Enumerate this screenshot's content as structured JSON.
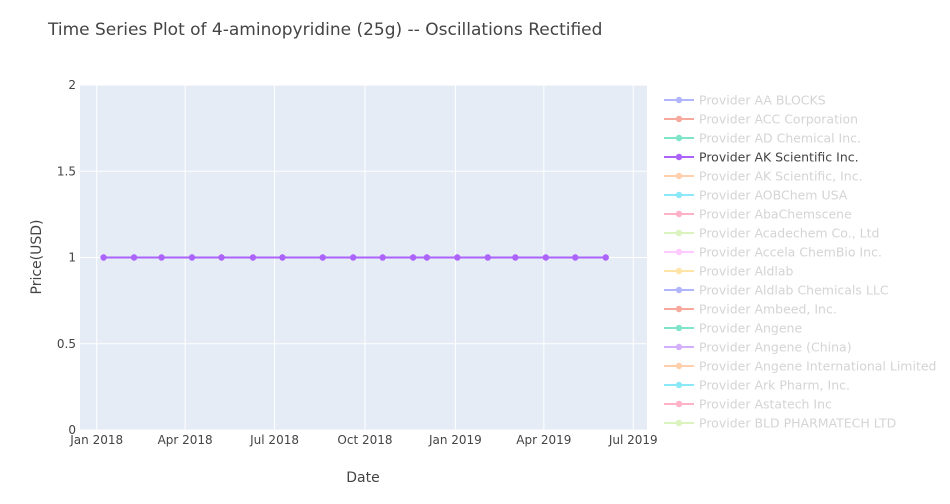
{
  "chart_data": {
    "type": "line",
    "title": "Time Series Plot of 4-aminopyridine (25g) -- Oscillations Rectified",
    "xlabel": "Date",
    "ylabel": "Price(USD)",
    "xlim": [
      "2017-12-15",
      "2019-07-15"
    ],
    "ylim": [
      0,
      2
    ],
    "x_ticks": [
      {
        "label": "Jan 2018",
        "date": "2018-01-01"
      },
      {
        "label": "Apr 2018",
        "date": "2018-04-01"
      },
      {
        "label": "Jul 2018",
        "date": "2018-07-01"
      },
      {
        "label": "Oct 2018",
        "date": "2018-10-01"
      },
      {
        "label": "Jan 2019",
        "date": "2019-01-01"
      },
      {
        "label": "Apr 2019",
        "date": "2019-04-01"
      },
      {
        "label": "Jul 2019",
        "date": "2019-07-01"
      }
    ],
    "y_ticks": [
      {
        "label": "0",
        "value": 0
      },
      {
        "label": "0.5",
        "value": 0.5
      },
      {
        "label": "1",
        "value": 1
      },
      {
        "label": "1.5",
        "value": 1.5
      },
      {
        "label": "2",
        "value": 2
      }
    ],
    "grid": true,
    "legend_position": "right",
    "series": [
      {
        "name": "Provider AA BLOCKS",
        "color": "#636efa",
        "x": [],
        "y": []
      },
      {
        "name": "Provider ACC Corporation",
        "color": "#ef553b",
        "x": [],
        "y": []
      },
      {
        "name": "Provider AD Chemical Inc.",
        "color": "#00cc96",
        "x": [],
        "y": []
      },
      {
        "name": "Provider AK Scientific Inc.",
        "color": "#ab63fa",
        "highlight": true,
        "x": [
          "2018-01-08",
          "2018-02-08",
          "2018-03-08",
          "2018-04-08",
          "2018-05-08",
          "2018-06-09",
          "2018-07-09",
          "2018-08-19",
          "2018-09-19",
          "2018-10-19",
          "2018-11-19",
          "2018-12-03",
          "2019-01-03",
          "2019-02-03",
          "2019-03-03",
          "2019-04-03",
          "2019-05-03",
          "2019-06-03"
        ],
        "y": [
          1,
          1,
          1,
          1,
          1,
          1,
          1,
          1,
          1,
          1,
          1,
          1,
          1,
          1,
          1,
          1,
          1,
          1
        ]
      },
      {
        "name": "Provider AK Scientific, Inc.",
        "color": "#ffa15a",
        "x": [],
        "y": []
      },
      {
        "name": "Provider AOBChem USA",
        "color": "#19d3f3",
        "x": [],
        "y": []
      },
      {
        "name": "Provider AbaChemscene",
        "color": "#ff6692",
        "x": [],
        "y": []
      },
      {
        "name": "Provider Acadechem Co., Ltd",
        "color": "#b6e880",
        "x": [],
        "y": []
      },
      {
        "name": "Provider Accela ChemBio Inc.",
        "color": "#ff97ff",
        "x": [],
        "y": []
      },
      {
        "name": "Provider Aldlab",
        "color": "#fecb52",
        "x": [],
        "y": []
      },
      {
        "name": "Provider Aldlab Chemicals LLC",
        "color": "#636efa",
        "x": [],
        "y": []
      },
      {
        "name": "Provider Ambeed, Inc.",
        "color": "#ef553b",
        "x": [],
        "y": []
      },
      {
        "name": "Provider Angene",
        "color": "#00cc96",
        "x": [],
        "y": []
      },
      {
        "name": "Provider Angene (China)",
        "color": "#ab63fa",
        "x": [],
        "y": []
      },
      {
        "name": "Provider Angene International Limited",
        "color": "#ffa15a",
        "x": [],
        "y": []
      },
      {
        "name": "Provider Ark Pharm, Inc.",
        "color": "#19d3f3",
        "x": [],
        "y": []
      },
      {
        "name": "Provider Astatech Inc",
        "color": "#ff6692",
        "x": [],
        "y": []
      },
      {
        "name": "Provider BLD PHARMATECH LTD",
        "color": "#b6e880",
        "x": [],
        "y": []
      }
    ]
  },
  "colors": {
    "plot_background": "#e5ecf6",
    "grid": "#ffffff",
    "text": "#444444",
    "legend_dim_text": "#aaaaaa",
    "legend_active_text": "#444444"
  }
}
